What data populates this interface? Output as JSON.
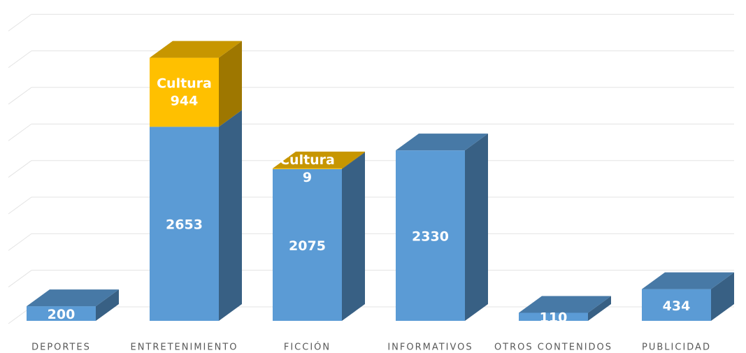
{
  "chart_data": {
    "type": "bar3d_stacked",
    "categories": [
      "DEPORTES",
      "ENTRETENIMIENTO",
      "FICCIÓN",
      "INFORMATIVOS",
      "OTROS CONTENIDOS",
      "PUBLICIDAD"
    ],
    "series": [
      {
        "color": "#5b9bd5",
        "values": [
          200,
          2653,
          2075,
          2330,
          110,
          434
        ]
      },
      {
        "name": "Cultura",
        "color": "#ffc000",
        "values": [
          null,
          944,
          9,
          null,
          null,
          null
        ]
      }
    ],
    "ylim": [
      0,
      4300
    ],
    "yticks": [
      0,
      500,
      1000,
      1500,
      2000,
      2500,
      3000,
      3500,
      4000
    ],
    "grid": true
  }
}
